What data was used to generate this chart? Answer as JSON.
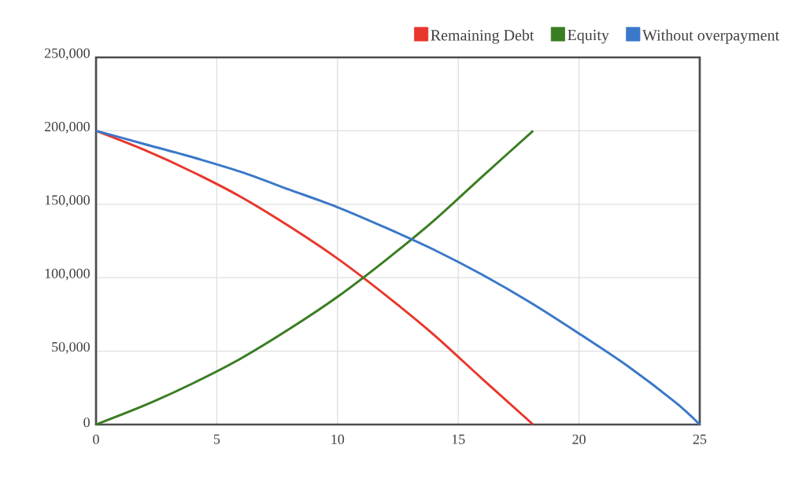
{
  "chart_data": {
    "type": "line",
    "x": [
      0,
      2,
      4,
      6,
      8,
      10,
      12,
      14,
      16,
      18.1
    ],
    "series": [
      {
        "name": "Remaining Debt",
        "color": "#e8372c",
        "values": [
          200000,
          187000,
          172000,
          155000,
          135000,
          113000,
          88000,
          61000,
          31000,
          0
        ]
      },
      {
        "name": "Equity",
        "color": "#3a7d22",
        "values": [
          0,
          13000,
          28000,
          45000,
          65000,
          87000,
          112000,
          139000,
          169000,
          200000
        ]
      },
      {
        "name": "Without overpayment",
        "color": "#3a78c9",
        "x": [
          0,
          2,
          4,
          6,
          8,
          10,
          12,
          14,
          16,
          18,
          20,
          22,
          24,
          25
        ],
        "values": [
          200000,
          191000,
          182000,
          172000,
          160000,
          148000,
          134000,
          119000,
          102000,
          83000,
          62000,
          40000,
          15000,
          0
        ]
      }
    ],
    "xlim": [
      0,
      25
    ],
    "ylim": [
      0,
      250000
    ],
    "xticks": [
      0,
      5,
      10,
      15,
      20,
      25
    ],
    "yticks": [
      {
        "value": 0,
        "label": "0"
      },
      {
        "value": 50000,
        "label": "50,000"
      },
      {
        "value": 100000,
        "label": "100,000"
      },
      {
        "value": 150000,
        "label": "150,000"
      },
      {
        "value": 200000,
        "label": "200,000"
      },
      {
        "value": 250000,
        "label": "250,000"
      }
    ],
    "grid": true,
    "legend": "top right",
    "marker": "none",
    "line_style": "solid"
  }
}
